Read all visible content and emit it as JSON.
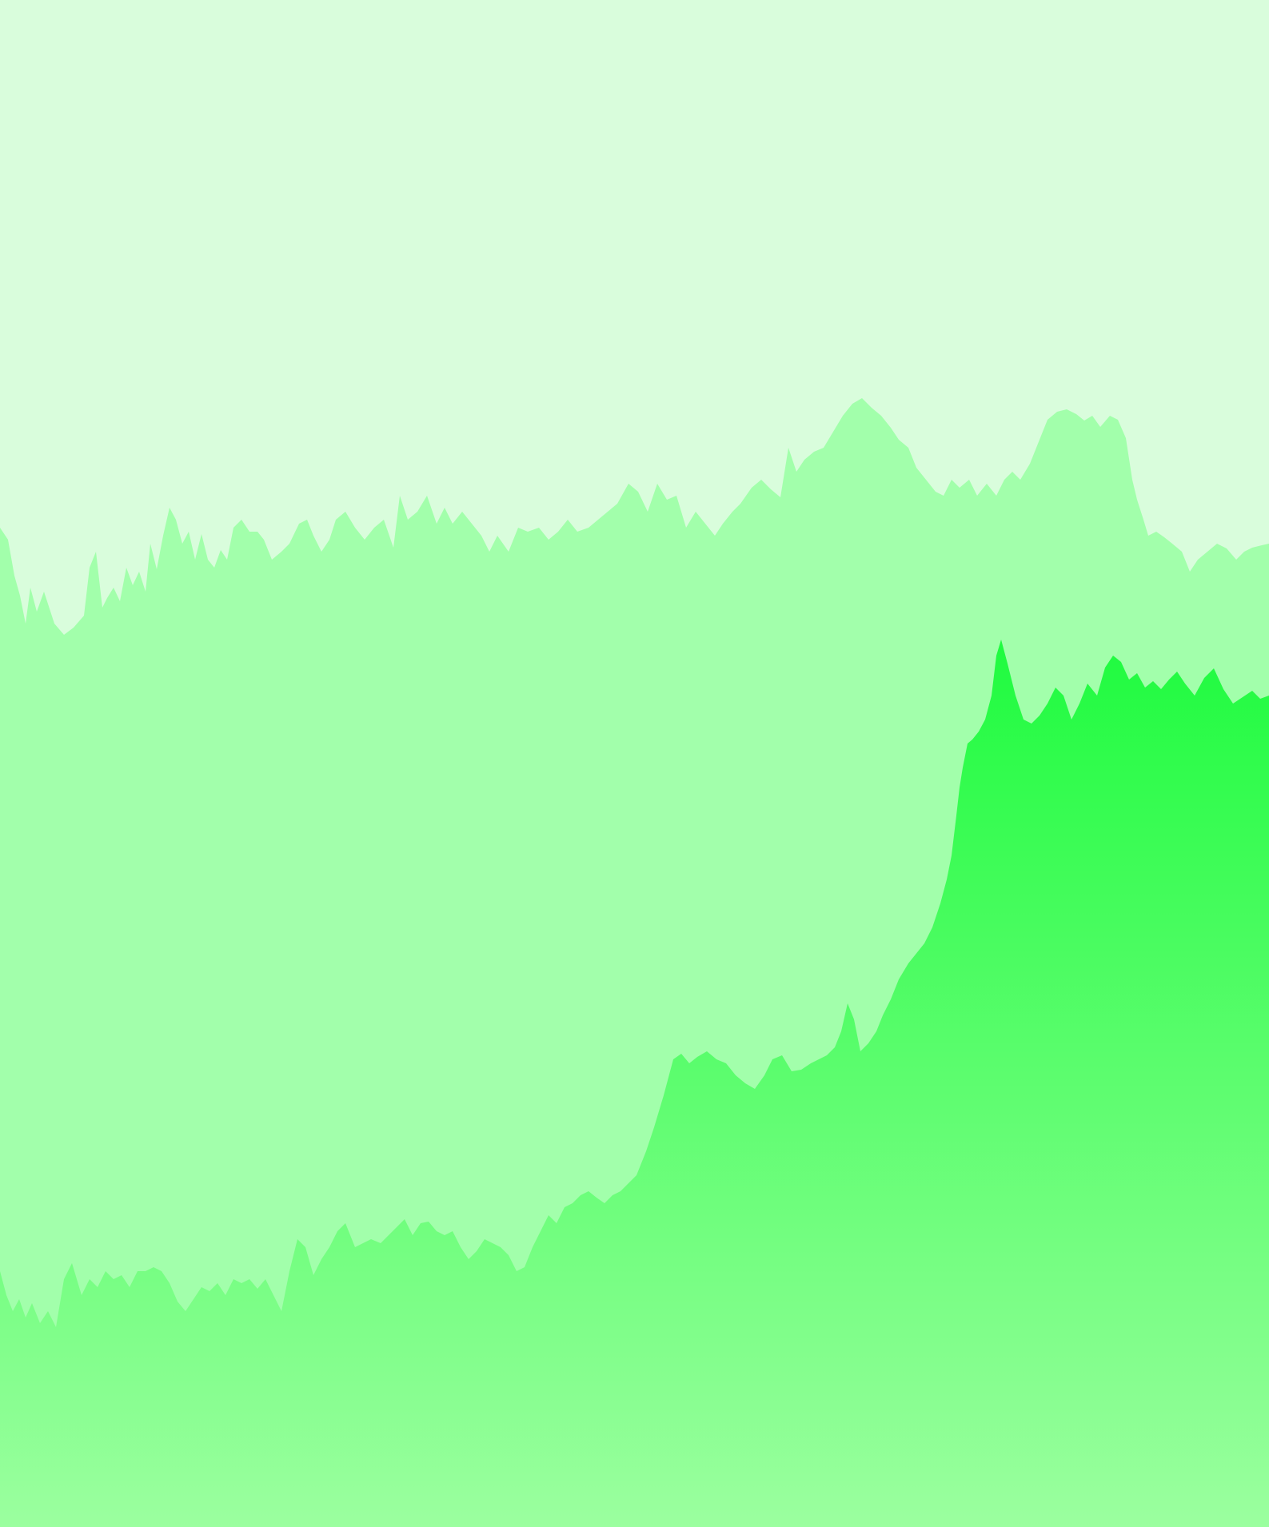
{
  "scene": {
    "colors": {
      "sky": "#d9fddc",
      "back_layer": "#a2ffab",
      "front_layer_top": "#1ffb3f",
      "front_layer_bottom": "#9bff9f"
    }
  }
}
